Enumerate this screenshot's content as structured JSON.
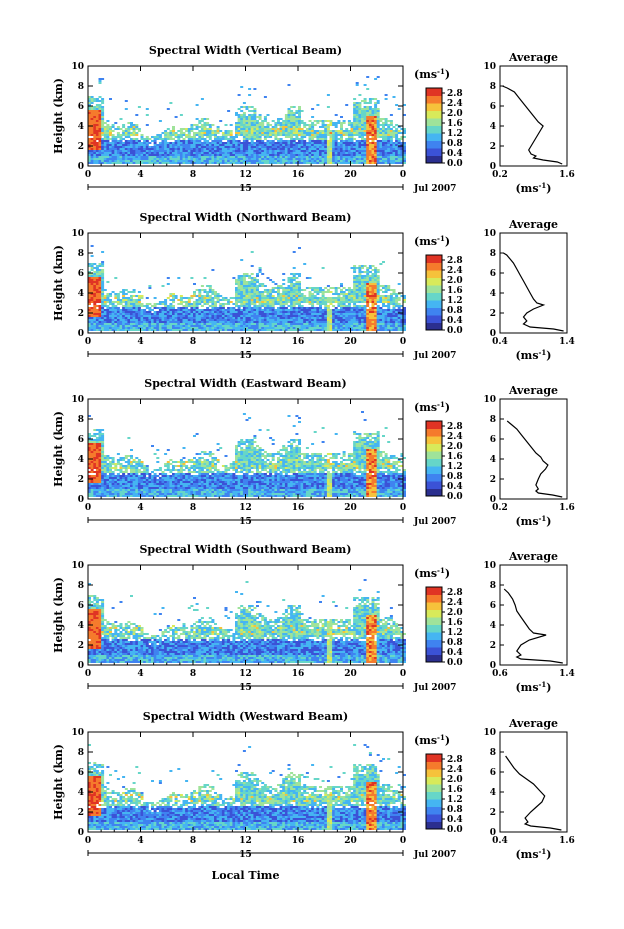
{
  "figure": {
    "xlabel": "Local Time",
    "date_label": "Jul 2007",
    "day_label": "15",
    "cbar_unit_label": "(ms",
    "cbar_unit_sup": "-1",
    "cbar_unit_close": ")",
    "avg_xlabel_open": "(ms",
    "avg_xlabel_sup": "-1",
    "avg_xlabel_close": ")"
  },
  "chart_data": [
    {
      "type": "heatmap",
      "title": "Spectral Width (Vertical Beam)",
      "ylabel": "Height (km)",
      "xticks": [
        "0",
        "4",
        "8",
        "12",
        "16",
        "20",
        "0"
      ],
      "yticks": [
        "0",
        "2",
        "4",
        "6",
        "8",
        "10"
      ],
      "xlim": [
        0,
        24
      ],
      "ylim": [
        0,
        10
      ],
      "colorbar": {
        "ticks": [
          "0.0",
          "0.4",
          "0.8",
          "1.2",
          "1.6",
          "2.0",
          "2.4",
          "2.8"
        ],
        "range": [
          0,
          3.0
        ]
      },
      "average": {
        "title": "Average",
        "xticks": [
          "0.2",
          "1.6"
        ],
        "xlim": [
          0.2,
          1.6
        ],
        "yticks": [
          "0",
          "2",
          "4",
          "6",
          "8",
          "10"
        ],
        "profile": [
          [
            1.5,
            0.2
          ],
          [
            1.4,
            0.4
          ],
          [
            1.1,
            0.6
          ],
          [
            0.9,
            0.8
          ],
          [
            0.95,
            1.0
          ],
          [
            0.85,
            1.2
          ],
          [
            0.8,
            1.6
          ],
          [
            0.85,
            2.0
          ],
          [
            0.9,
            2.4
          ],
          [
            0.95,
            2.8
          ],
          [
            1.0,
            3.2
          ],
          [
            1.05,
            3.6
          ],
          [
            1.1,
            4.0
          ],
          [
            1.0,
            4.4
          ],
          [
            0.9,
            5.0
          ],
          [
            0.8,
            5.6
          ],
          [
            0.7,
            6.2
          ],
          [
            0.6,
            6.8
          ],
          [
            0.5,
            7.4
          ],
          [
            0.35,
            7.8
          ],
          [
            0.25,
            8.0
          ]
        ]
      }
    },
    {
      "type": "heatmap",
      "title": "Spectral Width (Northward Beam)",
      "ylabel": "Height (km)",
      "xticks": [
        "0",
        "4",
        "8",
        "12",
        "16",
        "20",
        "0"
      ],
      "yticks": [
        "0",
        "2",
        "4",
        "6",
        "8",
        "10"
      ],
      "xlim": [
        0,
        24
      ],
      "ylim": [
        0,
        10
      ],
      "colorbar": {
        "ticks": [
          "0.0",
          "0.4",
          "0.8",
          "1.2",
          "1.6",
          "2.0",
          "2.4",
          "2.8"
        ],
        "range": [
          0,
          3.0
        ]
      },
      "average": {
        "title": "Average",
        "xticks": [
          "0.4",
          "1.4"
        ],
        "xlim": [
          0.4,
          1.4
        ],
        "yticks": [
          "0",
          "2",
          "4",
          "6",
          "8",
          "10"
        ],
        "profile": [
          [
            1.35,
            0.2
          ],
          [
            1.2,
            0.4
          ],
          [
            0.85,
            0.6
          ],
          [
            0.75,
            0.9
          ],
          [
            0.8,
            1.2
          ],
          [
            0.75,
            1.6
          ],
          [
            0.8,
            2.0
          ],
          [
            0.9,
            2.4
          ],
          [
            1.05,
            2.8
          ],
          [
            0.95,
            3.0
          ],
          [
            0.9,
            3.4
          ],
          [
            0.85,
            4.0
          ],
          [
            0.8,
            4.6
          ],
          [
            0.75,
            5.2
          ],
          [
            0.7,
            5.8
          ],
          [
            0.65,
            6.4
          ],
          [
            0.6,
            7.0
          ],
          [
            0.55,
            7.4
          ],
          [
            0.5,
            7.8
          ],
          [
            0.45,
            8.0
          ]
        ]
      }
    },
    {
      "type": "heatmap",
      "title": "Spectral Width (Eastward Beam)",
      "ylabel": "Height (km)",
      "xticks": [
        "0",
        "4",
        "8",
        "12",
        "16",
        "20",
        "0"
      ],
      "yticks": [
        "0",
        "2",
        "4",
        "6",
        "8",
        "10"
      ],
      "xlim": [
        0,
        24
      ],
      "ylim": [
        0,
        10
      ],
      "colorbar": {
        "ticks": [
          "0.0",
          "0.4",
          "0.8",
          "1.2",
          "1.6",
          "2.0",
          "2.4",
          "2.8"
        ],
        "range": [
          0,
          3.0
        ]
      },
      "average": {
        "title": "Average",
        "xticks": [
          "0.2",
          "1.6"
        ],
        "xlim": [
          0.2,
          1.6
        ],
        "yticks": [
          "0",
          "2",
          "4",
          "6",
          "8",
          "10"
        ],
        "profile": [
          [
            1.5,
            0.2
          ],
          [
            1.3,
            0.4
          ],
          [
            1.0,
            0.6
          ],
          [
            0.95,
            0.8
          ],
          [
            1.0,
            1.0
          ],
          [
            0.95,
            1.4
          ],
          [
            1.0,
            2.0
          ],
          [
            1.05,
            2.5
          ],
          [
            1.15,
            3.0
          ],
          [
            1.2,
            3.4
          ],
          [
            1.1,
            3.8
          ],
          [
            1.05,
            4.2
          ],
          [
            0.95,
            4.6
          ],
          [
            0.85,
            5.2
          ],
          [
            0.75,
            5.8
          ],
          [
            0.65,
            6.4
          ],
          [
            0.55,
            7.0
          ],
          [
            0.45,
            7.4
          ],
          [
            0.35,
            7.8
          ]
        ]
      }
    },
    {
      "type": "heatmap",
      "title": "Spectral Width (Southward Beam)",
      "ylabel": "Height (km)",
      "xticks": [
        "0",
        "4",
        "8",
        "12",
        "16",
        "20",
        "0"
      ],
      "yticks": [
        "0",
        "2",
        "4",
        "6",
        "8",
        "10"
      ],
      "xlim": [
        0,
        24
      ],
      "ylim": [
        0,
        10
      ],
      "colorbar": {
        "ticks": [
          "0.0",
          "0.4",
          "0.8",
          "1.2",
          "1.6",
          "2.0",
          "2.4",
          "2.8"
        ],
        "range": [
          0,
          3.0
        ]
      },
      "average": {
        "title": "Average",
        "xticks": [
          "0.6",
          "1.4"
        ],
        "xlim": [
          0.6,
          1.4
        ],
        "yticks": [
          "0",
          "2",
          "4",
          "6",
          "8",
          "10"
        ],
        "profile": [
          [
            1.35,
            0.2
          ],
          [
            1.2,
            0.4
          ],
          [
            0.85,
            0.6
          ],
          [
            0.8,
            0.8
          ],
          [
            0.85,
            1.0
          ],
          [
            0.8,
            1.4
          ],
          [
            0.85,
            2.0
          ],
          [
            0.95,
            2.5
          ],
          [
            1.15,
            3.0
          ],
          [
            1.0,
            3.2
          ],
          [
            0.95,
            3.6
          ],
          [
            0.9,
            4.2
          ],
          [
            0.85,
            4.8
          ],
          [
            0.8,
            5.4
          ],
          [
            0.78,
            6.0
          ],
          [
            0.75,
            6.6
          ],
          [
            0.7,
            7.2
          ],
          [
            0.65,
            7.6
          ]
        ]
      }
    },
    {
      "type": "heatmap",
      "title": "Spectral Width (Westward Beam)",
      "ylabel": "Height (km)",
      "xticks": [
        "0",
        "4",
        "8",
        "12",
        "16",
        "20",
        "0"
      ],
      "yticks": [
        "0",
        "2",
        "4",
        "6",
        "8",
        "10"
      ],
      "xlim": [
        0,
        24
      ],
      "ylim": [
        0,
        10
      ],
      "colorbar": {
        "ticks": [
          "0.0",
          "0.4",
          "0.8",
          "1.2",
          "1.6",
          "2.0",
          "2.4",
          "2.8"
        ],
        "range": [
          0,
          3.0
        ]
      },
      "average": {
        "title": "Average",
        "xticks": [
          "0.4",
          "1.6"
        ],
        "xlim": [
          0.4,
          1.6
        ],
        "yticks": [
          "0",
          "2",
          "4",
          "6",
          "8",
          "10"
        ],
        "profile": [
          [
            1.5,
            0.2
          ],
          [
            1.3,
            0.4
          ],
          [
            0.95,
            0.6
          ],
          [
            0.85,
            0.8
          ],
          [
            0.9,
            1.0
          ],
          [
            0.85,
            1.4
          ],
          [
            0.95,
            2.0
          ],
          [
            1.05,
            2.5
          ],
          [
            1.15,
            3.0
          ],
          [
            1.2,
            3.6
          ],
          [
            1.1,
            4.2
          ],
          [
            1.0,
            4.8
          ],
          [
            0.85,
            5.4
          ],
          [
            0.75,
            5.8
          ],
          [
            0.65,
            6.4
          ],
          [
            0.55,
            7.2
          ],
          [
            0.5,
            7.6
          ]
        ]
      }
    }
  ],
  "colors": {
    "colormap": [
      "#2b2f8f",
      "#3b52d6",
      "#3f83f0",
      "#45b5f2",
      "#66d6c8",
      "#9fe39a",
      "#d8ea5a",
      "#f6c23b",
      "#f57b2c",
      "#e03424"
    ]
  }
}
